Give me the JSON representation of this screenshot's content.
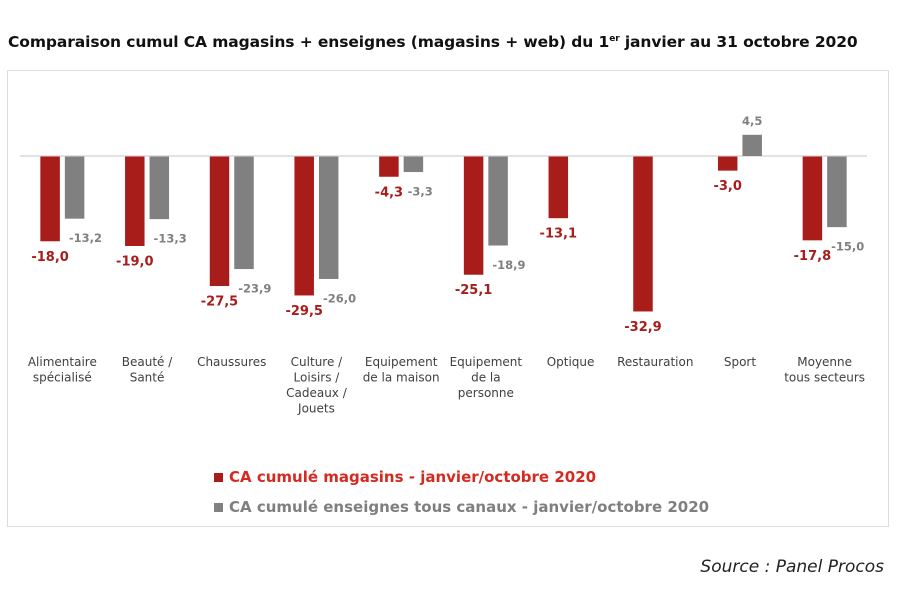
{
  "chart_data": {
    "type": "bar",
    "title": "Comparaison cumul CA magasins + enseignes (magasins + web) du 1",
    "title_superscript": "er",
    "title_suffix": " janvier au 31 octobre 2020",
    "xlabel": "",
    "ylabel": "",
    "grid": false,
    "ylim": [
      -33,
      5
    ],
    "legend_position": "bottom",
    "categories": [
      [
        "Alimentaire",
        "spécialisé"
      ],
      [
        "Beauté /",
        "Santé"
      ],
      [
        "Chaussures"
      ],
      [
        "Culture /",
        "Loisirs /",
        "Cadeaux /",
        "Jouets"
      ],
      [
        "Equipement",
        "de la maison"
      ],
      [
        "Equipement",
        "de la",
        "personne"
      ],
      [
        "Optique"
      ],
      [
        "Restauration"
      ],
      [
        "Sport"
      ],
      [
        "Moyenne",
        "tous secteurs"
      ]
    ],
    "series": [
      {
        "name": "CA cumulé magasins - janvier/octobre 2020",
        "color": "#a81d1a",
        "legend_text_color": "#d42a1f",
        "values": [
          -18.0,
          -19.0,
          -27.5,
          -29.5,
          -4.3,
          -25.1,
          -13.1,
          -32.9,
          -3.0,
          -17.8
        ],
        "labels": [
          "-18,0",
          "-19,0",
          "-27,5",
          "-29,5",
          "-4,3",
          "-25,1",
          "-13,1",
          "-32,9",
          "-3,0",
          "-17,8"
        ]
      },
      {
        "name": "CA cumulé enseignes tous canaux - janvier/octobre 2020",
        "color": "#808080",
        "legend_text_color": "#7f7f7f",
        "values": [
          -13.2,
          -13.3,
          -23.9,
          -26.0,
          -3.3,
          -18.9,
          null,
          null,
          4.5,
          -15.0
        ],
        "labels": [
          "-13,2",
          "-13,3",
          "-23,9",
          "-26,0",
          "-3,3",
          "-18,9",
          null,
          null,
          "4,5",
          "-15,0"
        ]
      }
    ]
  },
  "source": "Source : Panel Procos"
}
